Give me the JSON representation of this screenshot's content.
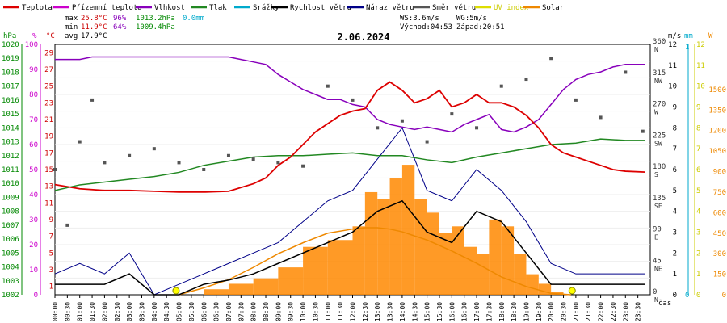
{
  "chart_data": {
    "type": "line",
    "title": "2.06.2024",
    "xlabel": "čas",
    "legend": [
      {
        "label": "Teplota",
        "color": "#dd0000"
      },
      {
        "label": "Přízemní teplota",
        "color": "#cc00cc"
      },
      {
        "label": "Vlhkost",
        "color": "#8800bb"
      },
      {
        "label": "Tlak",
        "color": "#228822"
      },
      {
        "label": "Srážky",
        "color": "#00aacc"
      },
      {
        "label": "Rychlost větru",
        "color": "#000000"
      },
      {
        "label": "Náraz větru",
        "color": "#000088"
      },
      {
        "label": "Směr větru",
        "color": "#555555"
      },
      {
        "label": "UV index",
        "color": "#dddd00"
      },
      {
        "label": "Solar",
        "color": "#ee8800"
      }
    ],
    "stats": {
      "max": {
        "label": "max",
        "temp": "25.8°C",
        "hum": "96%",
        "press": "1013.2hPa",
        "rain": "0.0mm"
      },
      "min": {
        "label": "min",
        "temp": "11.9°C",
        "hum": "64%",
        "press": "1009.4hPa"
      },
      "avg": {
        "label": "avg",
        "temp": "17.9°C"
      }
    },
    "wind_info": {
      "ws": "WS:3.6m/s",
      "wg": "WG:5m/s",
      "sunrise": "Východ:04:53",
      "sunset": "Západ:20:51"
    },
    "axes": {
      "temp": {
        "unit": "°C",
        "ticks": [
          "1",
          "3",
          "5",
          "7",
          "9",
          "11",
          "13",
          "15",
          "17",
          "19",
          "21",
          "23",
          "25",
          "27",
          "29"
        ]
      },
      "hum": {
        "unit": "%",
        "ticks": [
          "0",
          "10",
          "20",
          "30",
          "40",
          "50",
          "60",
          "70",
          "80",
          "90",
          "100"
        ]
      },
      "press": {
        "unit": "hPa",
        "ticks": [
          "1002",
          "1003",
          "1004",
          "1005",
          "1006",
          "1007",
          "1008",
          "1009",
          "1010",
          "1011",
          "1012",
          "1013",
          "1014",
          "1015",
          "1016",
          "1017",
          "1018",
          "1019",
          "1020"
        ]
      },
      "dir": {
        "ticks": [
          [
            "0",
            "N"
          ],
          [
            "45",
            "NE"
          ],
          [
            "90",
            "E"
          ],
          [
            "135",
            "SE"
          ],
          [
            "180",
            "S"
          ],
          [
            "225",
            "SW"
          ],
          [
            "270",
            "W"
          ],
          [
            "315",
            "NW"
          ],
          [
            "360",
            "N"
          ]
        ]
      },
      "wind": {
        "unit": "m/s",
        "ticks": [
          "0",
          "1",
          "2",
          "3",
          "4",
          "5",
          "6",
          "7",
          "8",
          "9",
          "10",
          "11",
          "12"
        ]
      },
      "rain": {
        "unit": "mm",
        "ticks": [
          "0",
          "1"
        ]
      },
      "uv": {
        "unit": "",
        "ticks": [
          "0",
          "1",
          "2",
          "3",
          "4",
          "5",
          "6",
          "7",
          "8",
          "9",
          "10",
          "11",
          "12"
        ]
      },
      "solar": {
        "unit": "W",
        "ticks": [
          "0",
          "150",
          "300",
          "450",
          "600",
          "750",
          "900",
          "1050",
          "1200",
          "1350",
          "1500"
        ]
      }
    },
    "time_labels": [
      "00:00",
      "00:30",
      "01:00",
      "01:30",
      "02:00",
      "02:30",
      "03:00",
      "03:30",
      "04:00",
      "04:30",
      "05:00",
      "05:30",
      "06:00",
      "06:30",
      "07:00",
      "07:30",
      "08:00",
      "08:30",
      "09:00",
      "09:30",
      "10:00",
      "10:30",
      "11:00",
      "11:30",
      "12:00",
      "12:30",
      "13:00",
      "13:30",
      "14:00",
      "14:30",
      "15:00",
      "15:30",
      "16:00",
      "16:30",
      "17:00",
      "17:30",
      "18:00",
      "18:30",
      "19:00",
      "19:30",
      "20:00",
      "20:30",
      "21:00",
      "21:30",
      "22:00",
      "22:30",
      "23:00",
      "23:30"
    ],
    "series": {
      "temperature": {
        "x": [
          0,
          1,
          2,
          3,
          4,
          5,
          6,
          7,
          8,
          8.5,
          9,
          9.5,
          10,
          10.5,
          11,
          11.5,
          12,
          12.5,
          13,
          13.5,
          14,
          14.5,
          15,
          15.5,
          16,
          16.5,
          17,
          17.5,
          18,
          18.5,
          19,
          19.5,
          20,
          20.5,
          21,
          21.5,
          22,
          22.5,
          23,
          23.8
        ],
        "y": [
          13.2,
          12.7,
          12.5,
          12.5,
          12.4,
          12.3,
          12.3,
          12.4,
          13.3,
          14,
          15.5,
          16.5,
          18,
          19.5,
          20.5,
          21.5,
          22,
          22.3,
          24.5,
          25.5,
          24.5,
          23,
          23.5,
          24.5,
          22.5,
          23,
          24,
          23,
          23,
          22.5,
          21.5,
          20,
          18,
          17,
          16.5,
          16,
          15.5,
          15,
          14.8,
          14.7
        ]
      },
      "humidity": {
        "x": [
          0,
          1,
          1.5,
          2,
          3,
          4,
          5,
          6,
          7,
          7.5,
          8,
          8.5,
          9,
          9.5,
          10,
          10.5,
          11,
          11.5,
          12,
          12.5,
          13,
          13.5,
          14,
          14.5,
          15,
          15.5,
          16,
          16.5,
          17,
          17.5,
          18,
          18.5,
          19,
          19.5,
          20,
          20.5,
          21,
          21.5,
          22,
          22.5,
          23,
          23.8
        ],
        "y": [
          94,
          94,
          95,
          95,
          95,
          95,
          95,
          95,
          95,
          94,
          93,
          92,
          88,
          85,
          82,
          80,
          78,
          78,
          76,
          75,
          70,
          68,
          67,
          66,
          67,
          66,
          65,
          68,
          70,
          72,
          66,
          65,
          67,
          70,
          76,
          82,
          86,
          88,
          89,
          91,
          92,
          92
        ]
      },
      "pressure": {
        "x": [
          0,
          1,
          2,
          3,
          4,
          5,
          6,
          7,
          8,
          9,
          10,
          11,
          12,
          13,
          14,
          15,
          16,
          17,
          18,
          19,
          20,
          21,
          22,
          23,
          23.8
        ],
        "y": [
          1009.5,
          1009.9,
          1010.1,
          1010.3,
          1010.5,
          1010.8,
          1011.3,
          1011.6,
          1011.9,
          1012,
          1012,
          1012.1,
          1012.2,
          1012,
          1012,
          1011.7,
          1011.5,
          1011.9,
          1012.2,
          1012.5,
          1012.8,
          1012.9,
          1013.2,
          1013.1,
          1013.1
        ]
      },
      "wind_speed": {
        "x": [
          0,
          1,
          2,
          3,
          4,
          5,
          6,
          7,
          8,
          9,
          10,
          11,
          12,
          13,
          14,
          15,
          16,
          17,
          18,
          19,
          20,
          21,
          22,
          23,
          23.8
        ],
        "y": [
          0.5,
          0.5,
          0.5,
          1,
          0,
          0,
          0.5,
          0.7,
          1,
          1.5,
          2,
          2.5,
          3,
          4,
          4.5,
          3,
          2.5,
          4,
          3.5,
          2,
          0.5,
          0.5,
          0.5,
          0.5,
          0.5
        ]
      },
      "wind_gust": {
        "x": [
          0,
          1,
          2,
          3,
          4,
          5,
          6,
          7,
          8,
          9,
          10,
          11,
          12,
          13,
          14,
          15,
          16,
          17,
          18,
          19,
          20,
          21,
          22,
          23,
          23.8
        ],
        "y": [
          1,
          1.5,
          1,
          2,
          0,
          0.5,
          1,
          1.5,
          2,
          2.5,
          3.5,
          4.5,
          5,
          6.5,
          8,
          5,
          4.5,
          6,
          5,
          3.5,
          1.5,
          1,
          1,
          1,
          1
        ]
      },
      "solar": {
        "x": [
          5,
          6,
          7,
          8,
          9,
          10,
          11,
          12,
          12.5,
          13,
          13.5,
          14,
          14.5,
          15,
          16,
          17,
          18,
          19,
          20,
          20.8
        ],
        "y": [
          0,
          50,
          110,
          200,
          300,
          380,
          450,
          480,
          490,
          490,
          480,
          460,
          430,
          400,
          320,
          230,
          130,
          60,
          10,
          0
        ]
      },
      "solar_bars": {
        "x": [
          5,
          6,
          7,
          8,
          9,
          10,
          11,
          12,
          12.5,
          13,
          13.5,
          14,
          14.5,
          15,
          15.5,
          16,
          16.5,
          17,
          17.5,
          18,
          18.5,
          19,
          19.5,
          20,
          20.5
        ],
        "y": [
          0,
          40,
          80,
          120,
          200,
          350,
          400,
          500,
          750,
          700,
          850,
          950,
          700,
          600,
          450,
          500,
          350,
          300,
          550,
          500,
          300,
          150,
          80,
          20,
          0
        ]
      },
      "wind_direction": {
        "x": [
          0,
          0.5,
          1,
          1.5,
          2,
          3,
          4,
          5,
          6,
          7,
          8,
          9,
          10,
          11,
          12,
          13,
          14,
          15,
          16,
          17,
          18,
          19,
          20,
          21,
          22,
          23,
          23.7
        ],
        "y": [
          180,
          100,
          220,
          280,
          190,
          200,
          210,
          190,
          180,
          200,
          195,
          190,
          185,
          300,
          280,
          240,
          250,
          220,
          260,
          240,
          300,
          310,
          340,
          280,
          255,
          320,
          235
        ]
      }
    },
    "sun_events": [
      {
        "x": 4.883
      },
      {
        "x": 20.85
      }
    ]
  }
}
